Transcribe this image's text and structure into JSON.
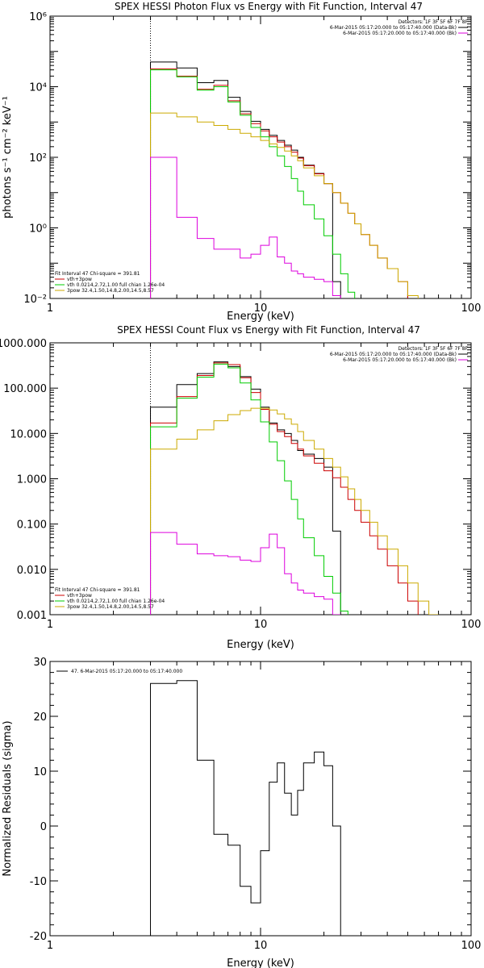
{
  "chart_data": [
    {
      "type": "line",
      "title": "SPEX HESSI Photon Flux vs Energy with Fit Function, Interval 47",
      "xlabel": "Energy (keV)",
      "ylabel": "photons s⁻¹ cm⁻² keV⁻¹",
      "xscale": "log",
      "yscale": "log",
      "xlim": [
        1,
        100
      ],
      "ylim": [
        0.01,
        1000000
      ],
      "x_ticks": [
        {
          "value": 1,
          "label": "1"
        },
        {
          "value": 10,
          "label": "10"
        },
        {
          "value": 100,
          "label": "100"
        }
      ],
      "y_ticks": [
        {
          "value": 0.01,
          "label": "10⁻²"
        },
        {
          "value": 1,
          "label": "10⁰"
        },
        {
          "value": 100,
          "label": "10²"
        },
        {
          "value": 10000,
          "label": "10⁴"
        },
        {
          "value": 1000000,
          "label": "10⁶"
        }
      ],
      "grid": false,
      "legend_topright": {
        "heading": "Detectors: 1F 3F 5F 6F 7F 8F",
        "entries": [
          {
            "label": "6-Mar-2015 05:17:20.000 to 05:17:40.000 (Data-Bk)",
            "color": "#000000"
          },
          {
            "label": "6-Mar-2015 05:17:20.000 to 05:17:40.000 (Bk)",
            "color": "#dd00dd"
          }
        ]
      },
      "legend_bottomleft": {
        "heading": "Fit Interval 47   Chi-square = 391.81",
        "entries": [
          {
            "label": "vth+3pow",
            "color": "#cc0000"
          },
          {
            "label": "vth 0.0214,2.72,1.00  full chian 1.26e-04",
            "color": "#00cc00"
          },
          {
            "label": "3pow 32.4,1.50,14.8,2.00,14.5,8.57",
            "color": "#ccaa00"
          }
        ]
      },
      "vline_x": 3,
      "edges": [
        3,
        4,
        5,
        6,
        7,
        8,
        9,
        10,
        11,
        12,
        13,
        14,
        15,
        16,
        18,
        20,
        22,
        24,
        26,
        28,
        30,
        33,
        36,
        40,
        45,
        50,
        56,
        63,
        70,
        80,
        90,
        100
      ],
      "series": [
        {
          "name": "data",
          "color": "#000000",
          "values": [
            50000,
            34000,
            13000,
            15000,
            5000,
            2000,
            1050,
            620,
            420,
            300,
            220,
            160,
            100,
            60,
            35,
            18,
            0.03
          ]
        },
        {
          "name": "vth+3pow",
          "color": "#cc0000",
          "values": [
            32000,
            20000,
            8500,
            11000,
            4000,
            1700,
            900,
            560,
            380,
            270,
            200,
            140,
            95,
            58,
            34,
            18,
            10,
            5,
            2.6,
            1.3,
            0.65,
            0.32,
            0.14,
            0.07,
            0.03
          ]
        },
        {
          "name": "vth",
          "color": "#00cc00",
          "values": [
            30000,
            19000,
            8000,
            10000,
            3700,
            1550,
            700,
            380,
            200,
            110,
            55,
            25,
            11,
            4.5,
            1.8,
            0.6,
            0.18,
            0.05,
            0.015
          ]
        },
        {
          "name": "3pow",
          "color": "#ccaa00",
          "values": [
            1800,
            1400,
            1000,
            800,
            620,
            480,
            380,
            300,
            240,
            190,
            150,
            110,
            80,
            50,
            30,
            18,
            10,
            5,
            2.6,
            1.3,
            0.65,
            0.32,
            0.14,
            0.07,
            0.03,
            0.012
          ]
        },
        {
          "name": "background",
          "color": "#dd00dd",
          "values": [
            100,
            2,
            0.5,
            0.25,
            0.25,
            0.14,
            0.18,
            0.32,
            0.55,
            0.15,
            0.1,
            0.06,
            0.05,
            0.04,
            0.035,
            0.03,
            0.012
          ]
        }
      ]
    },
    {
      "type": "line",
      "title": "SPEX HESSI Count Flux vs Energy with Fit Function, Interval 47",
      "xlabel": "Energy (keV)",
      "ylabel": "",
      "xscale": "log",
      "yscale": "log",
      "xlim": [
        1,
        100
      ],
      "ylim": [
        0.001,
        1000
      ],
      "x_ticks": [
        {
          "value": 1,
          "label": "1"
        },
        {
          "value": 10,
          "label": "10"
        },
        {
          "value": 100,
          "label": "100"
        }
      ],
      "y_ticks": [
        {
          "value": 0.001,
          "label": "0.001"
        },
        {
          "value": 0.01,
          "label": "0.010"
        },
        {
          "value": 0.1,
          "label": "0.100"
        },
        {
          "value": 1,
          "label": "1.000"
        },
        {
          "value": 10,
          "label": "10.000"
        },
        {
          "value": 100,
          "label": "100.000"
        },
        {
          "value": 1000,
          "label": "1000.000"
        }
      ],
      "grid": false,
      "legend_topright": {
        "heading": "Detectors: 1F 3F 5F 6F 7F 8F",
        "entries": [
          {
            "label": "6-Mar-2015 05:17:20.000 to 05:17:40.000 (Data-Bk)",
            "color": "#000000"
          },
          {
            "label": "6-Mar-2015 05:17:20.000 to 05:17:40.000 (Bk)",
            "color": "#dd00dd"
          }
        ]
      },
      "legend_bottomleft": {
        "heading": "Fit Interval 47   Chi-square = 391.81",
        "entries": [
          {
            "label": "vth+3pow",
            "color": "#cc0000"
          },
          {
            "label": "vth 0.0214,2.72,1.00  full chian 1.26e-04",
            "color": "#00cc00"
          },
          {
            "label": "3pow 32.4,1.50,14.8,2.00,14.5,8.57",
            "color": "#ccaa00"
          }
        ]
      },
      "vline_x": 3,
      "edges": [
        3,
        4,
        5,
        6,
        7,
        8,
        9,
        10,
        11,
        12,
        13,
        14,
        15,
        16,
        18,
        20,
        22,
        24,
        26,
        28,
        30,
        33,
        36,
        40,
        45,
        50,
        56,
        63,
        70,
        80,
        90,
        100
      ],
      "series": [
        {
          "name": "data",
          "color": "#000000",
          "values": [
            38,
            120,
            210,
            380,
            300,
            180,
            95,
            38,
            17,
            12,
            10,
            7,
            4.2,
            3.5,
            2.8,
            1.8,
            0.07
          ]
        },
        {
          "name": "vth+3pow",
          "color": "#cc0000",
          "values": [
            17,
            65,
            190,
            360,
            330,
            170,
            80,
            34,
            16,
            11,
            8.5,
            6,
            4.5,
            3.2,
            2.2,
            1.5,
            1.05,
            0.65,
            0.35,
            0.2,
            0.11,
            0.055,
            0.028,
            0.012,
            0.005,
            0.002
          ]
        },
        {
          "name": "vth",
          "color": "#00cc00",
          "values": [
            14,
            60,
            175,
            340,
            280,
            130,
            55,
            18,
            6.5,
            2.5,
            0.9,
            0.35,
            0.13,
            0.05,
            0.02,
            0.007,
            0.003,
            0.0012
          ]
        },
        {
          "name": "3pow",
          "color": "#ccaa00",
          "values": [
            4.5,
            7.5,
            12,
            19,
            26,
            32,
            36,
            36,
            33,
            27,
            21,
            16,
            11,
            7,
            4.5,
            2.8,
            1.8,
            1.1,
            0.6,
            0.35,
            0.2,
            0.11,
            0.055,
            0.028,
            0.012,
            0.005,
            0.002,
            0.001
          ]
        },
        {
          "name": "background",
          "color": "#dd00dd",
          "values": [
            0.065,
            0.036,
            0.022,
            0.02,
            0.019,
            0.016,
            0.015,
            0.03,
            0.06,
            0.03,
            0.008,
            0.005,
            0.0035,
            0.003,
            0.0025,
            0.0022,
            0.001
          ]
        }
      ]
    },
    {
      "type": "line",
      "title": "",
      "xlabel": "Energy (keV)",
      "ylabel": "Normalized Residuals (sigma)",
      "xscale": "log",
      "yscale": "linear",
      "xlim": [
        1,
        100
      ],
      "ylim": [
        -20,
        30
      ],
      "x_ticks": [
        {
          "value": 1,
          "label": "1"
        },
        {
          "value": 10,
          "label": "10"
        },
        {
          "value": 100,
          "label": "100"
        }
      ],
      "y_ticks": [
        {
          "value": -20,
          "label": "-20"
        },
        {
          "value": -10,
          "label": "-10"
        },
        {
          "value": 0,
          "label": "0"
        },
        {
          "value": 10,
          "label": "10"
        },
        {
          "value": 20,
          "label": "20"
        },
        {
          "value": 30,
          "label": "30"
        }
      ],
      "grid": false,
      "legend_topleft": {
        "entries": [
          {
            "label": "47.  6-Mar-2015 05:17:20.000 to 05:17:40.000",
            "color": "#000000"
          }
        ]
      },
      "edges": [
        3,
        4,
        5,
        6,
        7,
        8,
        9,
        10,
        11,
        12,
        13,
        14,
        15,
        16,
        18,
        20,
        22,
        24
      ],
      "series": [
        {
          "name": "residuals",
          "color": "#000000",
          "values": [
            26,
            26.5,
            12,
            -1.5,
            -3.5,
            -11,
            -14,
            -4.5,
            8,
            11.5,
            6,
            2,
            6.5,
            11.5,
            13.5,
            11,
            0
          ]
        }
      ]
    }
  ]
}
